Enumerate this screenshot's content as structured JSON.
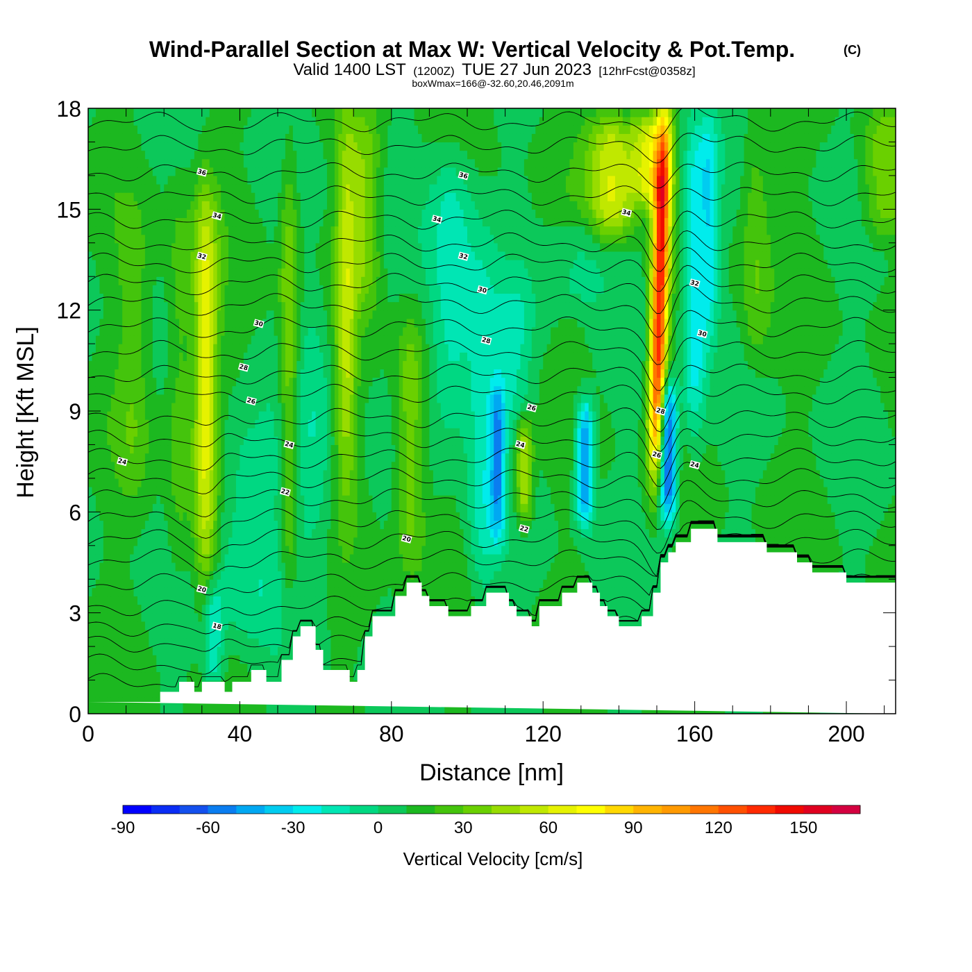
{
  "header": {
    "title": "Wind-Parallel Section at Max W: Vertical Velocity & Pot.Temp.",
    "title_mark": "(C)",
    "valid_prefix": "Valid 1400 LST",
    "valid_zulu": "(1200Z)",
    "valid_date": "TUE 27 Jun 2023",
    "forecast_note": "[12hrFcst@0358z]",
    "box_note": "boxWmax=166@-32.60,20.46,2091m"
  },
  "chart_data": {
    "type": "heatmap",
    "xlabel": "Distance [nm]",
    "ylabel": "Height [Kft MSL]",
    "xlim": [
      0,
      213
    ],
    "ylim": [
      0,
      18
    ],
    "x_ticks": [
      0,
      40,
      80,
      120,
      160,
      200
    ],
    "y_ticks": [
      0,
      3,
      6,
      9,
      12,
      15,
      18
    ],
    "grid": false,
    "colorbar": {
      "label": "Vertical Velocity [cm/s]",
      "placement": "bottom",
      "tick_values": [
        -90,
        -60,
        -30,
        0,
        30,
        60,
        90,
        120,
        150
      ],
      "levels": [
        -90,
        -80,
        -70,
        -60,
        -50,
        -40,
        -30,
        -20,
        -10,
        0,
        10,
        20,
        30,
        40,
        50,
        60,
        70,
        80,
        90,
        100,
        110,
        120,
        130,
        140,
        150,
        160,
        170
      ],
      "colors": [
        "#0000ff",
        "#0a2df5",
        "#1450ee",
        "#0a7df0",
        "#00a8f2",
        "#00ccf0",
        "#00ecec",
        "#00e6b4",
        "#00d882",
        "#0cc85a",
        "#1cb820",
        "#44c40c",
        "#6ad000",
        "#98dc00",
        "#c0e800",
        "#e6f200",
        "#ffff00",
        "#ffd800",
        "#ffb400",
        "#ff9a00",
        "#ff7600",
        "#ff5000",
        "#ff2a00",
        "#f00a00",
        "#e00020",
        "#d40040"
      ]
    },
    "vertical_velocity_features": [
      {
        "x": 31,
        "h0": 3.0,
        "h1": 16.0,
        "w": 3.2,
        "v": 55,
        "shape": "updraft"
      },
      {
        "x": 24,
        "h0": 3.0,
        "h1": 16.0,
        "w": 3.5,
        "v": 18
      },
      {
        "x": 12,
        "h0": 6.0,
        "h1": 15.0,
        "w": 4.5,
        "v": 15
      },
      {
        "x": 33,
        "h0": 0.6,
        "h1": 4.0,
        "w": 2.5,
        "v": -30
      },
      {
        "x": 42,
        "h0": 2.0,
        "h1": 9.0,
        "w": 12.0,
        "v": -20
      },
      {
        "x": 53,
        "h0": 3.0,
        "h1": 17.0,
        "w": 2.5,
        "v": 32
      },
      {
        "x": 60,
        "h0": 4.0,
        "h1": 13.0,
        "w": 5.0,
        "v": -15
      },
      {
        "x": 68,
        "h0": 6.0,
        "h1": 18.0,
        "w": 2.8,
        "v": 38
      },
      {
        "x": 73,
        "h0": 12.0,
        "h1": 18.0,
        "w": 4.0,
        "v": 30
      },
      {
        "x": 85,
        "h0": 4.0,
        "h1": 12.0,
        "w": 4.0,
        "v": 30
      },
      {
        "x": 96,
        "h0": 8.0,
        "h1": 17.0,
        "w": 6.0,
        "v": -30
      },
      {
        "x": 104,
        "h0": 3.0,
        "h1": 14.0,
        "w": 4.0,
        "v": -25
      },
      {
        "x": 108,
        "h0": 5.0,
        "h1": 10.0,
        "w": 2.0,
        "v": -50
      },
      {
        "x": 115,
        "h0": 5.5,
        "h1": 9.0,
        "w": 2.2,
        "v": 45
      },
      {
        "x": 112,
        "h0": 8.0,
        "h1": 13.0,
        "w": 5.0,
        "v": -20
      },
      {
        "x": 131,
        "h0": 5.5,
        "h1": 9.5,
        "w": 2.3,
        "v": -65
      },
      {
        "x": 130,
        "h0": 12.0,
        "h1": 15.0,
        "w": 7.0,
        "v": -15
      },
      {
        "x": 138,
        "h0": 14.0,
        "h1": 18.0,
        "w": 6.0,
        "v": 50
      },
      {
        "x": 148,
        "h0": 15.0,
        "h1": 18.0,
        "w": 5.0,
        "v": 55
      },
      {
        "x": 150,
        "h0": 7.0,
        "h1": 18.0,
        "w": 2.2,
        "v": 130,
        "shape": "tilted",
        "x_top": 152,
        "x_bottom": 149.5
      },
      {
        "x": 153,
        "h0": 5.5,
        "h1": 10.0,
        "w": 2.3,
        "v": -80
      },
      {
        "x": 160,
        "h0": 8.0,
        "h1": 18.0,
        "w": 3.0,
        "v": -40
      },
      {
        "x": 164,
        "h0": 11.0,
        "h1": 18.0,
        "w": 2.5,
        "v": -35
      },
      {
        "x": 176,
        "h0": 10.0,
        "h1": 18.0,
        "w": 4.0,
        "v": 20
      },
      {
        "x": 210,
        "h0": 14.0,
        "h1": 18.0,
        "w": 6.0,
        "v": 28
      }
    ],
    "terrain": [
      [
        0,
        0.35
      ],
      [
        19,
        0.35
      ],
      [
        19,
        0.65
      ],
      [
        24,
        0.65
      ],
      [
        24,
        0.95
      ],
      [
        28,
        0.95
      ],
      [
        28,
        0.65
      ],
      [
        30,
        0.65
      ],
      [
        30,
        0.95
      ],
      [
        36,
        0.95
      ],
      [
        36,
        0.65
      ],
      [
        38,
        0.65
      ],
      [
        38,
        0.95
      ],
      [
        43,
        0.95
      ],
      [
        43,
        1.3
      ],
      [
        47,
        1.3
      ],
      [
        47,
        0.95
      ],
      [
        51,
        0.95
      ],
      [
        51,
        1.6
      ],
      [
        54,
        1.6
      ],
      [
        54,
        2.3
      ],
      [
        56,
        2.3
      ],
      [
        56,
        2.6
      ],
      [
        60,
        2.6
      ],
      [
        60,
        1.9
      ],
      [
        62,
        1.9
      ],
      [
        62,
        1.3
      ],
      [
        69,
        1.3
      ],
      [
        69,
        0.95
      ],
      [
        71,
        0.95
      ],
      [
        71,
        1.3
      ],
      [
        73,
        1.3
      ],
      [
        73,
        2.3
      ],
      [
        75,
        2.3
      ],
      [
        75,
        2.9
      ],
      [
        81,
        2.9
      ],
      [
        81,
        3.5
      ],
      [
        84,
        3.5
      ],
      [
        84,
        3.9
      ],
      [
        88,
        3.9
      ],
      [
        88,
        3.5
      ],
      [
        90,
        3.5
      ],
      [
        90,
        3.2
      ],
      [
        95,
        3.2
      ],
      [
        95,
        2.9
      ],
      [
        101,
        2.9
      ],
      [
        101,
        3.2
      ],
      [
        105,
        3.2
      ],
      [
        105,
        3.6
      ],
      [
        111,
        3.6
      ],
      [
        111,
        3.2
      ],
      [
        113,
        3.2
      ],
      [
        113,
        2.9
      ],
      [
        117,
        2.9
      ],
      [
        117,
        2.6
      ],
      [
        119,
        2.6
      ],
      [
        119,
        3.2
      ],
      [
        125,
        3.2
      ],
      [
        125,
        3.6
      ],
      [
        129,
        3.6
      ],
      [
        129,
        3.9
      ],
      [
        133,
        3.9
      ],
      [
        133,
        3.6
      ],
      [
        135,
        3.6
      ],
      [
        135,
        3.2
      ],
      [
        137,
        3.2
      ],
      [
        137,
        2.9
      ],
      [
        140,
        2.9
      ],
      [
        140,
        2.6
      ],
      [
        146,
        2.6
      ],
      [
        146,
        2.9
      ],
      [
        149,
        2.9
      ],
      [
        149,
        3.6
      ],
      [
        151,
        3.6
      ],
      [
        151,
        4.5
      ],
      [
        153,
        4.5
      ],
      [
        153,
        4.8
      ],
      [
        155,
        4.8
      ],
      [
        155,
        5.1
      ],
      [
        159,
        5.1
      ],
      [
        159,
        5.5
      ],
      [
        166,
        5.5
      ],
      [
        166,
        5.1
      ],
      [
        179,
        5.1
      ],
      [
        179,
        4.8
      ],
      [
        187,
        4.8
      ],
      [
        187,
        4.5
      ],
      [
        191,
        4.5
      ],
      [
        191,
        4.2
      ],
      [
        200,
        4.2
      ],
      [
        200,
        3.9
      ],
      [
        213,
        3.9
      ],
      [
        213,
        0
      ]
    ],
    "theta_contour_heights": [
      0.9,
      1.5,
      2.1,
      2.6,
      3.2,
      3.9,
      4.6,
      5.2,
      5.8,
      6.4,
      7.0,
      7.6,
      8.2,
      8.8,
      9.5,
      10.1,
      10.8,
      11.5,
      12.2,
      12.8,
      13.4,
      14.0,
      14.7,
      15.4,
      16.1,
      16.9,
      17.6
    ],
    "theta_contour_labels": [
      {
        "text": "36",
        "x": 30,
        "y": 16.1
      },
      {
        "text": "34",
        "x": 34,
        "y": 14.8
      },
      {
        "text": "32",
        "x": 30,
        "y": 13.6
      },
      {
        "text": "30",
        "x": 45,
        "y": 11.6
      },
      {
        "text": "28",
        "x": 41,
        "y": 10.3
      },
      {
        "text": "26",
        "x": 43,
        "y": 9.3
      },
      {
        "text": "24",
        "x": 53,
        "y": 8.0
      },
      {
        "text": "24",
        "x": 9,
        "y": 7.5
      },
      {
        "text": "22",
        "x": 52,
        "y": 6.6
      },
      {
        "text": "20",
        "x": 84,
        "y": 5.2
      },
      {
        "text": "20",
        "x": 30,
        "y": 3.7
      },
      {
        "text": "18",
        "x": 34,
        "y": 2.6
      },
      {
        "text": "36",
        "x": 99,
        "y": 16.0
      },
      {
        "text": "34",
        "x": 92,
        "y": 14.7
      },
      {
        "text": "32",
        "x": 99,
        "y": 13.6
      },
      {
        "text": "30",
        "x": 104,
        "y": 12.6
      },
      {
        "text": "28",
        "x": 105,
        "y": 11.1
      },
      {
        "text": "26",
        "x": 117,
        "y": 9.1
      },
      {
        "text": "24",
        "x": 114,
        "y": 8.0
      },
      {
        "text": "22",
        "x": 115,
        "y": 5.5
      },
      {
        "text": "34",
        "x": 142,
        "y": 14.9
      },
      {
        "text": "32",
        "x": 160,
        "y": 12.8
      },
      {
        "text": "30",
        "x": 162,
        "y": 11.3
      },
      {
        "text": "28",
        "x": 151,
        "y": 9.0
      },
      {
        "text": "26",
        "x": 150,
        "y": 7.7
      },
      {
        "text": "24",
        "x": 160,
        "y": 7.4
      }
    ]
  }
}
